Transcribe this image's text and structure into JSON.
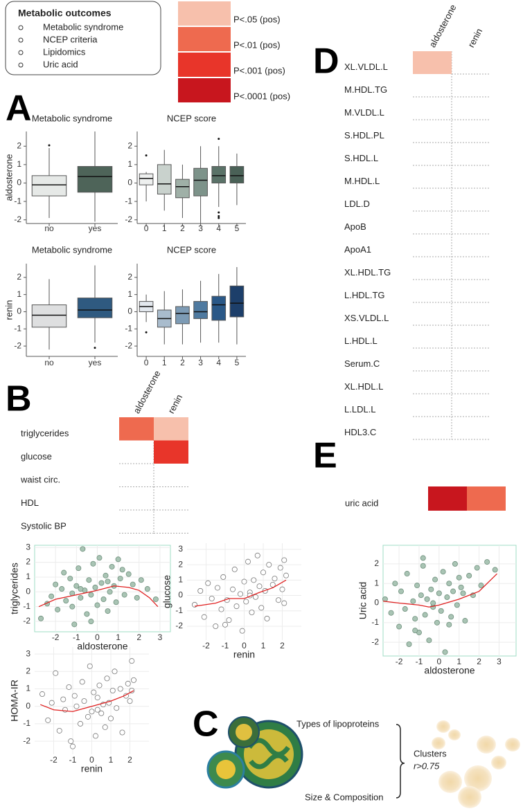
{
  "legend_box": {
    "title": "Metabolic outcomes",
    "items": [
      "Metabolic syndrome",
      "NCEP criteria",
      "Lipidomics",
      "Uric acid"
    ]
  },
  "color_key": {
    "labels": [
      "P<.05 (pos)",
      "P<.01 (pos)",
      "P<.001 (pos)",
      "P<.0001 (pos)"
    ],
    "colors": [
      "#f7c0ac",
      "#ee6a4f",
      "#e8352a",
      "#c8161e"
    ]
  },
  "panel_labels": [
    "A",
    "B",
    "C",
    "D",
    "E"
  ],
  "diagram": {
    "labels": [
      "Types of lipoproteins",
      "Size & Composition"
    ],
    "result": "Clusters",
    "threshold": "r>0.75"
  },
  "chart_data": [
    {
      "type": "box",
      "title": "Metabolic syndrome",
      "ylabel": "aldosterone",
      "categories": [
        "no",
        "yes"
      ],
      "colors": [
        "#e6e9e7",
        "#4e6459"
      ],
      "stats": [
        {
          "low": -1.9,
          "q1": -0.7,
          "median": -0.1,
          "q3": 0.4,
          "high": 1.9,
          "outliers": [
            2.05
          ]
        },
        {
          "low": -2.1,
          "q1": -0.5,
          "median": 0.35,
          "q3": 0.9,
          "high": 2.8,
          "outliers": []
        }
      ],
      "ylim": [
        -2.2,
        2.8
      ],
      "yticks": [
        -2,
        -1,
        0,
        1,
        2
      ]
    },
    {
      "type": "box",
      "title": "NCEP score",
      "categories": [
        "0",
        "1",
        "2",
        "3",
        "4",
        "5"
      ],
      "colors": [
        "#eef0ef",
        "#c9d2cd",
        "#9fb0a7",
        "#7d938a",
        "#5a7268",
        "#4a6157"
      ],
      "stats": [
        {
          "low": -1.0,
          "q1": -0.1,
          "median": 0.25,
          "q3": 0.5,
          "high": 0.6,
          "outliers": [
            1.5
          ]
        },
        {
          "low": -1.5,
          "q1": -0.6,
          "median": -0.05,
          "q3": 1.0,
          "high": 1.8,
          "outliers": []
        },
        {
          "low": -1.9,
          "q1": -0.8,
          "median": -0.2,
          "q3": 0.2,
          "high": 1.0,
          "outliers": []
        },
        {
          "low": -2.2,
          "q1": -0.7,
          "median": 0.15,
          "q3": 0.8,
          "high": 2.0,
          "outliers": []
        },
        {
          "low": -1.3,
          "q1": 0,
          "median": 0.4,
          "q3": 0.9,
          "high": 2.0,
          "outliers": [
            2.4,
            -1.6,
            -1.8,
            -1.9
          ]
        },
        {
          "low": -1.2,
          "q1": 0,
          "median": 0.4,
          "q3": 0.9,
          "high": 1.6,
          "outliers": []
        }
      ],
      "ylim": [
        -2.2,
        2.8
      ],
      "yticks": [
        -2,
        -1,
        0,
        1,
        2
      ]
    },
    {
      "type": "box",
      "title": "Metabolic syndrome",
      "ylabel": "renin",
      "categories": [
        "no",
        "yes"
      ],
      "colors": [
        "#dedfe0",
        "#2f5a80"
      ],
      "stats": [
        {
          "low": -2.2,
          "q1": -0.9,
          "median": -0.2,
          "q3": 0.4,
          "high": 1.9,
          "outliers": []
        },
        {
          "low": -1.8,
          "q1": -0.35,
          "median": 0.1,
          "q3": 0.8,
          "high": 2.7,
          "outliers": [
            -2.1
          ]
        }
      ],
      "ylim": [
        -2.6,
        2.8
      ],
      "yticks": [
        -2,
        -1,
        0,
        1,
        2
      ]
    },
    {
      "type": "box",
      "title": "NCEP score",
      "categories": [
        "0",
        "1",
        "2",
        "3",
        "4",
        "5"
      ],
      "colors": [
        "#e3e8ee",
        "#a9bccd",
        "#7d9bb5",
        "#4f7aa0",
        "#2a5887",
        "#1d3f6a"
      ],
      "stats": [
        {
          "low": -0.6,
          "q1": 0,
          "median": 0.3,
          "q3": 0.6,
          "high": 1.0,
          "outliers": [
            -1.2
          ]
        },
        {
          "low": -1.9,
          "q1": -0.9,
          "median": -0.4,
          "q3": 0.1,
          "high": 1.2,
          "outliers": []
        },
        {
          "low": -1.9,
          "q1": -0.7,
          "median": -0.1,
          "q3": 0.3,
          "high": 1.3,
          "outliers": []
        },
        {
          "low": -1.8,
          "q1": -0.4,
          "median": 0,
          "q3": 0.6,
          "high": 1.8,
          "outliers": []
        },
        {
          "low": -1.8,
          "q1": -0.5,
          "median": 0.4,
          "q3": 0.9,
          "high": 2.2,
          "outliers": []
        },
        {
          "low": -1.9,
          "q1": -0.3,
          "median": 0.5,
          "q3": 1.5,
          "high": 2.6,
          "outliers": []
        }
      ],
      "ylim": [
        -2.6,
        2.8
      ],
      "yticks": [
        -2,
        -1,
        0,
        1,
        2
      ]
    },
    {
      "type": "heatmap",
      "columns": [
        "aldosterone",
        "renin"
      ],
      "rows": [
        "triglycerides",
        "glucose",
        "waist circ.",
        "HDL",
        "Systolic BP"
      ],
      "levels": [
        [
          2,
          1
        ],
        [
          0,
          3
        ],
        [
          0,
          0
        ],
        [
          0,
          0
        ],
        [
          0,
          0
        ]
      ]
    },
    {
      "type": "heatmap",
      "columns": [
        "aldosterone",
        "renin"
      ],
      "rows": [
        "XL.VLDL.L",
        "M.HDL.TG",
        "M.VLDL.L",
        "S.HDL.PL",
        "S.HDL.L",
        "M.HDL.L",
        "LDL.D",
        "ApoB",
        "ApoA1",
        "XL.HDL.TG",
        "L.HDL.TG",
        "XS.VLDL.L",
        "L.HDL.L",
        "Serum.C",
        "XL.HDL.L",
        "L.LDL.L",
        "HDL3.C"
      ],
      "levels": [
        [
          1,
          0
        ],
        [
          0,
          0
        ],
        [
          0,
          0
        ],
        [
          0,
          0
        ],
        [
          0,
          0
        ],
        [
          0,
          0
        ],
        [
          0,
          0
        ],
        [
          0,
          0
        ],
        [
          0,
          0
        ],
        [
          0,
          0
        ],
        [
          0,
          0
        ],
        [
          0,
          0
        ],
        [
          0,
          0
        ],
        [
          0,
          0
        ],
        [
          0,
          0
        ],
        [
          0,
          0
        ],
        [
          0,
          0
        ]
      ]
    },
    {
      "type": "heatmap",
      "rows": [
        "uric acid"
      ],
      "levels": [
        [
          4,
          2
        ]
      ]
    },
    {
      "type": "scatter",
      "xlabel": "aldosterone",
      "ylabel": "triglycerides",
      "filled": true,
      "frame": true,
      "grid": true,
      "color": "#a9c4b4",
      "x": [
        -2.7,
        -2.4,
        -2.2,
        -2.0,
        -1.9,
        -1.7,
        -1.6,
        -1.5,
        -1.3,
        -1.2,
        -1.1,
        -1.0,
        -0.9,
        -0.8,
        -0.7,
        -0.6,
        -0.5,
        -0.4,
        -0.3,
        -0.2,
        -0.1,
        0,
        0.1,
        0.2,
        0.3,
        0.4,
        0.5,
        0.6,
        0.7,
        0.8,
        0.9,
        1.0,
        1.1,
        1.3,
        1.5,
        1.7,
        1.9,
        2.1,
        2.4,
        2.8,
        -1.2,
        -0.3,
        0.5,
        1.2,
        -0.8
      ],
      "y": [
        -1.8,
        -0.8,
        -0.3,
        0.5,
        -1.2,
        0.2,
        1.3,
        -0.6,
        0.9,
        -0.1,
        -2.2,
        0.4,
        1.6,
        -0.4,
        2.9,
        0.1,
        -1.5,
        0.8,
        -0.2,
        1.9,
        0.3,
        -0.9,
        2.3,
        0.6,
        -0.5,
        1.1,
        -1.3,
        0,
        1.7,
        0.4,
        -0.7,
        2.2,
        0.9,
        -0.2,
        1.2,
        0.5,
        -0.4,
        0.8,
        0.2,
        -0.5,
        -1.0,
        -2.0,
        0.7,
        1.5,
        0.2
      ],
      "trend": {
        "color": "#e02020",
        "x": [
          -2.8,
          -2,
          -1,
          0,
          0.8,
          1.5,
          2,
          2.5,
          2.9
        ],
        "y": [
          -1.0,
          -0.5,
          -0.2,
          0.1,
          0.4,
          0.3,
          0.1,
          -0.4,
          -1.0
        ]
      },
      "xlim": [
        -3,
        3.5
      ],
      "ylim": [
        -2.7,
        3.15
      ],
      "xticks": [
        -2,
        -1,
        0,
        1,
        2,
        3
      ],
      "yticks": [
        -2,
        -1,
        0,
        1,
        2,
        3
      ]
    },
    {
      "type": "scatter",
      "xlabel": "renin",
      "ylabel": "glucose",
      "filled": false,
      "frame": false,
      "grid": true,
      "color": "#ffffff",
      "x": [
        -2.6,
        -2.3,
        -2.1,
        -1.9,
        -1.7,
        -1.5,
        -1.4,
        -1.2,
        -1.1,
        -0.9,
        -0.8,
        -0.6,
        -0.5,
        -0.4,
        -0.2,
        -0.1,
        0,
        0.1,
        0.2,
        0.3,
        0.4,
        0.5,
        0.6,
        0.7,
        0.8,
        0.9,
        1.0,
        1.1,
        1.2,
        1.3,
        1.5,
        1.6,
        1.8,
        1.9,
        2.0,
        2.1,
        2.1,
        2.2,
        -1.0,
        0.3
      ],
      "y": [
        -0.6,
        0.3,
        -1.4,
        0.8,
        -0.2,
        -2.0,
        0.5,
        -0.9,
        1.2,
        -0.3,
        -1.6,
        0.4,
        1.7,
        -0.7,
        0.1,
        -2.3,
        0.9,
        -0.4,
        2.2,
        0.2,
        -1.1,
        1.0,
        -0.1,
        2.6,
        0.6,
        -0.8,
        1.5,
        0.3,
        -1.5,
        2.0,
        0.7,
        1.1,
        -0.3,
        1.8,
        0.4,
        2.3,
        -0.5,
        1.3,
        -1.9,
        0
      ],
      "trend": {
        "color": "#e02020",
        "x": [
          -2.6,
          -1.5,
          -0.8,
          0,
          0.8,
          1.5,
          2.2
        ],
        "y": [
          -0.7,
          -0.5,
          -0.2,
          -0.2,
          0.2,
          0.5,
          1.0
        ]
      },
      "xlim": [
        -3,
        3
      ],
      "ylim": [
        -2.9,
        3.4
      ],
      "xticks": [
        -2,
        -1,
        0,
        1,
        2
      ],
      "yticks": [
        -2,
        -1,
        0,
        1,
        2,
        3
      ]
    },
    {
      "type": "scatter",
      "xlabel": "renin",
      "ylabel": "HOMA-IR",
      "filled": false,
      "frame": false,
      "grid": true,
      "color": "#ffffff",
      "x": [
        -2.6,
        -2.3,
        -2.1,
        -1.9,
        -1.7,
        -1.5,
        -1.4,
        -1.2,
        -1.1,
        -0.9,
        -0.8,
        -0.6,
        -0.5,
        -0.4,
        -0.2,
        -0.1,
        0,
        0.1,
        0.2,
        0.3,
        0.4,
        0.5,
        0.6,
        0.7,
        0.8,
        0.9,
        1.0,
        1.1,
        1.2,
        1.3,
        1.5,
        1.6,
        1.8,
        1.9,
        2.0,
        2.1,
        2.1,
        2.2,
        -1.0,
        0.3
      ],
      "y": [
        0.7,
        -0.8,
        0.2,
        1.9,
        -1.4,
        0.4,
        -0.2,
        1.1,
        -2.0,
        0.6,
        0,
        -1.0,
        1.4,
        0.3,
        -0.6,
        2.3,
        -0.3,
        0.8,
        -1.7,
        0.5,
        1.2,
        -0.4,
        0.1,
        -1.2,
        1.6,
        0.2,
        -0.7,
        0.9,
        2.0,
        -0.1,
        1.0,
        -1.5,
        0.6,
        1.3,
        0.3,
        2.6,
        0.9,
        1.5,
        -2.3,
        -0.2
      ],
      "trend": {
        "color": "#e02020",
        "x": [
          -2.7,
          -2,
          -1,
          0,
          1,
          1.7,
          2.2
        ],
        "y": [
          0.1,
          -0.2,
          -0.3,
          0,
          0.3,
          0.6,
          0.9
        ]
      },
      "xlim": [
        -3,
        3
      ],
      "ylim": [
        -2.75,
        3.4
      ],
      "xticks": [
        -2,
        -1,
        0,
        1,
        2
      ],
      "yticks": [
        -2,
        -1,
        0,
        1,
        2,
        3
      ]
    },
    {
      "type": "scatter",
      "xlabel": "aldosterone",
      "ylabel": "Uric acid",
      "filled": true,
      "frame": true,
      "grid": true,
      "color": "#a9c4b4",
      "x": [
        -2.7,
        -2.4,
        -2.2,
        -2.0,
        -1.9,
        -1.7,
        -1.6,
        -1.5,
        -1.3,
        -1.2,
        -1.1,
        -1.0,
        -0.9,
        -0.8,
        -0.7,
        -0.6,
        -0.5,
        -0.4,
        -0.3,
        -0.2,
        -0.1,
        0,
        0.1,
        0.2,
        0.3,
        0.4,
        0.5,
        0.6,
        0.7,
        0.8,
        0.9,
        1.0,
        1.1,
        1.3,
        1.5,
        1.7,
        1.9,
        2.1,
        2.4,
        2.8,
        -1.2,
        -0.3,
        0.5,
        1.2,
        -0.8
      ],
      "y": [
        0.2,
        -0.5,
        1.0,
        -1.2,
        0.6,
        -0.3,
        1.5,
        -2.1,
        0.1,
        -0.8,
        0.9,
        -1.5,
        0.4,
        1.9,
        -0.6,
        0.2,
        -1.9,
        0.7,
        -0.2,
        1.2,
        -1.0,
        0.5,
        -0.4,
        1.6,
        -2.5,
        0.3,
        1.0,
        -0.7,
        0.6,
        2.0,
        -0.1,
        1.3,
        0.8,
        -0.9,
        1.4,
        0.4,
        1.8,
        0.9,
        2.1,
        1.7,
        -1.4,
        0,
        -1.1,
        0.5,
        2.3
      ],
      "trend": {
        "color": "#e02020",
        "x": [
          -2.8,
          -2,
          -1,
          -0.5,
          0,
          1,
          2,
          2.9
        ],
        "y": [
          0.1,
          0,
          -0.1,
          -0.2,
          -0.1,
          0.2,
          0.6,
          1.5
        ]
      },
      "xlim": [
        -2.8,
        3.85
      ],
      "ylim": [
        -2.7,
        2.95
      ],
      "xticks": [
        -2,
        -1,
        0,
        1,
        2,
        3
      ],
      "yticks": [
        -2,
        -1,
        0,
        1,
        2
      ]
    }
  ]
}
